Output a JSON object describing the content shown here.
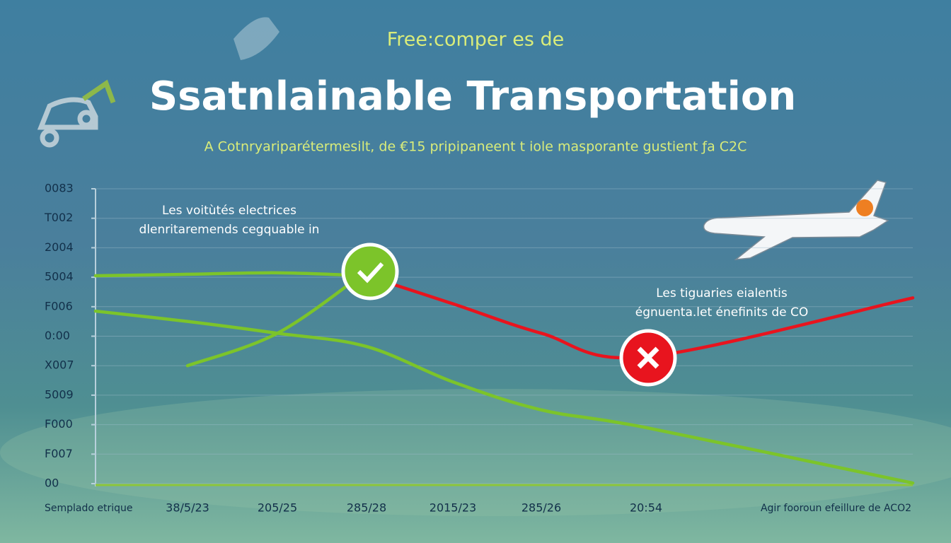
{
  "chart_data": {
    "type": "line",
    "kicker": "Free:comper es de",
    "title": "Ssatnlainable Transportation",
    "subtitle": "A Cotnryariparétermesilt, de €15 pripipaneent t iole masporante gustient ƒa C2C",
    "annotations": [
      [
        "Les voitùtés electrices",
        "dlenritaremends cegquable in"
      ],
      [
        "Les tiguaries eialentis",
        "égnuenta.let énefinits de CO"
      ]
    ],
    "categories": [
      "Semplado etrique",
      "38/5/23",
      "205/25",
      "285/28",
      "2015/23",
      "285/26",
      "20:54",
      "Agir fooroun efeillure de ACO2"
    ],
    "series": [
      {
        "color": "#7cc42a",
        "values": [
          7.05,
          7.1,
          7.15,
          7.05,
          null,
          null,
          null,
          null
        ]
      },
      {
        "color": "#e8141e",
        "values": [
          null,
          null,
          null,
          7.05,
          6.1,
          5.1,
          4.3,
          6.3
        ]
      },
      {
        "color": "#7cc42a",
        "values": [
          null,
          4.0,
          5.1,
          7.2,
          null,
          null,
          null,
          null
        ]
      },
      {
        "color": "#7cc42a",
        "values": [
          5.85,
          5.5,
          5.1,
          4.65,
          3.45,
          2.5,
          1.9,
          0.02
        ]
      }
    ],
    "ylim": [
      0,
      10
    ],
    "yticks": [
      {
        "value": 0,
        "label": "00"
      },
      {
        "value": 1,
        "label": "F007"
      },
      {
        "value": 2,
        "label": "F000"
      },
      {
        "value": 3,
        "label": "5009"
      },
      {
        "value": 4,
        "label": "X007"
      },
      {
        "value": 5,
        "label": "0:00"
      },
      {
        "value": 6,
        "label": "F006"
      },
      {
        "value": 7,
        "label": "5004"
      },
      {
        "value": 8,
        "label": "2004"
      },
      {
        "value": 9,
        "label": "T002"
      },
      {
        "value": 10,
        "label": "0083"
      }
    ],
    "grid": true
  }
}
